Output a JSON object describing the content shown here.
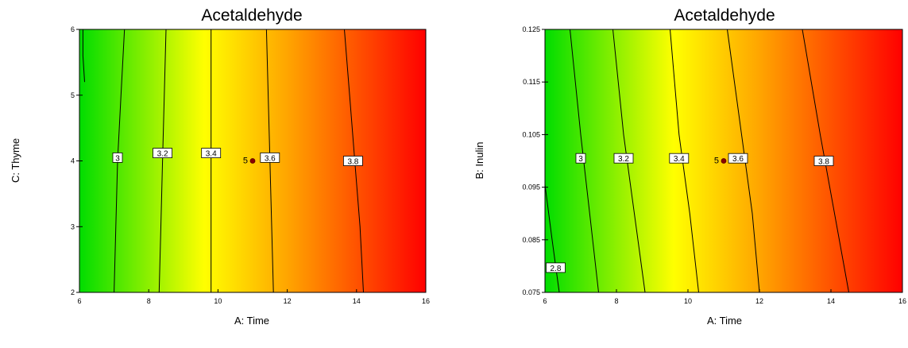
{
  "chart_data": [
    {
      "type": "contour",
      "title": "Acetaldehyde",
      "xlabel": "A: Time",
      "ylabel": "C: Thyme",
      "xlim": [
        6,
        16
      ],
      "ylim": [
        2,
        6
      ],
      "x_ticks": [
        "6",
        "8",
        "10",
        "12",
        "14",
        "16"
      ],
      "y_ticks": [
        "2",
        "3",
        "4",
        "5",
        "6"
      ],
      "colorscale": [
        "#00dd00",
        "#ffff00",
        "#ffa500",
        "#ff0000"
      ],
      "contours": [
        {
          "label": "3",
          "line": [
            [
              7.0,
              2
            ],
            [
              7.05,
              3
            ],
            [
              7.1,
              4
            ],
            [
              7.2,
              5
            ],
            [
              7.3,
              6
            ]
          ],
          "label_at": [
            7.1,
            4.05
          ]
        },
        {
          "label": "3.2",
          "line": [
            [
              8.3,
              2
            ],
            [
              8.35,
              3
            ],
            [
              8.4,
              4
            ],
            [
              8.45,
              5
            ],
            [
              8.5,
              6
            ]
          ],
          "label_at": [
            8.4,
            4.12
          ]
        },
        {
          "label": "3.4",
          "line": [
            [
              9.8,
              2
            ],
            [
              9.8,
              3
            ],
            [
              9.8,
              4
            ],
            [
              9.8,
              5
            ],
            [
              9.8,
              6
            ]
          ],
          "label_at": [
            9.8,
            4.12
          ]
        },
        {
          "label": "3.6",
          "line": [
            [
              11.6,
              2
            ],
            [
              11.55,
              3
            ],
            [
              11.5,
              4
            ],
            [
              11.45,
              5
            ],
            [
              11.4,
              6
            ]
          ],
          "label_at": [
            11.5,
            4.05
          ]
        },
        {
          "label": "3.8",
          "line": [
            [
              14.2,
              2
            ],
            [
              14.1,
              3
            ],
            [
              13.95,
              4
            ],
            [
              13.8,
              5
            ],
            [
              13.65,
              6
            ]
          ],
          "label_at": [
            13.9,
            4.0
          ]
        }
      ],
      "edge_contour": {
        "line": [
          [
            6.15,
            5.2
          ],
          [
            6.1,
            5.6
          ],
          [
            6.1,
            6
          ]
        ]
      },
      "design_point": {
        "x": 11.0,
        "y": 4.0,
        "label": "5"
      }
    },
    {
      "type": "contour",
      "title": "Acetaldehyde",
      "xlabel": "A: Time",
      "ylabel": "B: Inulin",
      "xlim": [
        6,
        16
      ],
      "ylim": [
        0.075,
        0.125
      ],
      "x_ticks": [
        "6",
        "8",
        "10",
        "12",
        "14",
        "16"
      ],
      "y_ticks": [
        "0.075",
        "0.085",
        "0.095",
        "0.105",
        "0.115",
        "0.125"
      ],
      "colorscale": [
        "#00dd00",
        "#ffff00",
        "#ffa500",
        "#ff0000"
      ],
      "contours": [
        {
          "label": "2.8",
          "line": [
            [
              6.0,
              0.0955
            ],
            [
              6.2,
              0.085
            ],
            [
              6.4,
              0.075
            ]
          ],
          "label_at": [
            6.3,
            0.0797
          ]
        },
        {
          "label": "3",
          "line": [
            [
              6.7,
              0.125
            ],
            [
              7.0,
              0.105
            ],
            [
              7.25,
              0.09
            ],
            [
              7.5,
              0.075
            ]
          ],
          "label_at": [
            7.0,
            0.1005
          ]
        },
        {
          "label": "3.2",
          "line": [
            [
              7.9,
              0.125
            ],
            [
              8.2,
              0.105
            ],
            [
              8.5,
              0.09
            ],
            [
              8.8,
              0.075
            ]
          ],
          "label_at": [
            8.2,
            0.1005
          ]
        },
        {
          "label": "3.4",
          "line": [
            [
              9.5,
              0.125
            ],
            [
              9.75,
              0.105
            ],
            [
              10.05,
              0.09
            ],
            [
              10.3,
              0.075
            ]
          ],
          "label_at": [
            9.75,
            0.1005
          ]
        },
        {
          "label": "3.6",
          "line": [
            [
              11.1,
              0.125
            ],
            [
              11.5,
              0.105
            ],
            [
              11.8,
              0.09
            ],
            [
              12.0,
              0.075
            ]
          ],
          "label_at": [
            11.4,
            0.1005
          ]
        },
        {
          "label": "3.8",
          "line": [
            [
              13.2,
              0.125
            ],
            [
              13.7,
              0.105
            ],
            [
              14.1,
              0.09
            ],
            [
              14.5,
              0.075
            ]
          ],
          "label_at": [
            13.8,
            0.1
          ]
        }
      ],
      "design_point": {
        "x": 11.0,
        "y": 0.1,
        "label": "5"
      }
    }
  ]
}
